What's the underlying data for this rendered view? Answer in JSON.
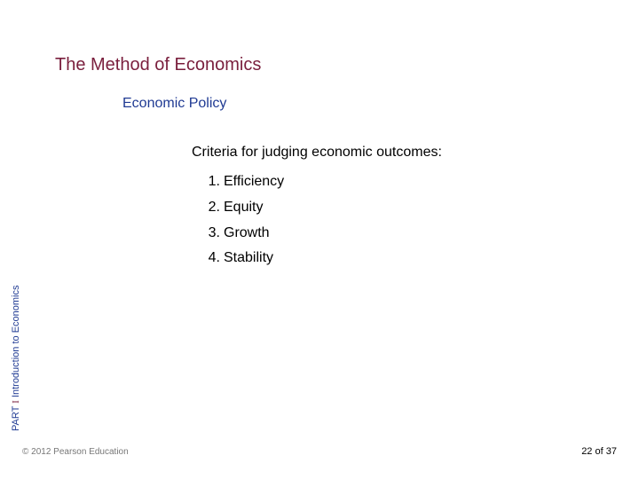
{
  "header": {
    "main_title": "The Method of Economics",
    "subtitle": "Economic Policy"
  },
  "content": {
    "intro": "Criteria for judging economic outcomes:",
    "criteria": [
      "Efficiency",
      "Equity",
      "Growth",
      "Stability"
    ]
  },
  "sidebar": {
    "part_word": "PART",
    "part_number": "I",
    "part_title": "Introduction to Economics"
  },
  "footer": {
    "copyright": "© 2012 Pearson Education",
    "page_current": "22",
    "page_of": "of",
    "page_total": "37"
  },
  "styles": {
    "title_color": "#7a1f3d",
    "subtitle_color": "#1f3a93",
    "text_color": "#000000",
    "copyright_color": "#777777",
    "background_color": "#ffffff",
    "title_fontsize": 20,
    "subtitle_fontsize": 16,
    "body_fontsize": 16,
    "footer_fontsize": 11
  }
}
